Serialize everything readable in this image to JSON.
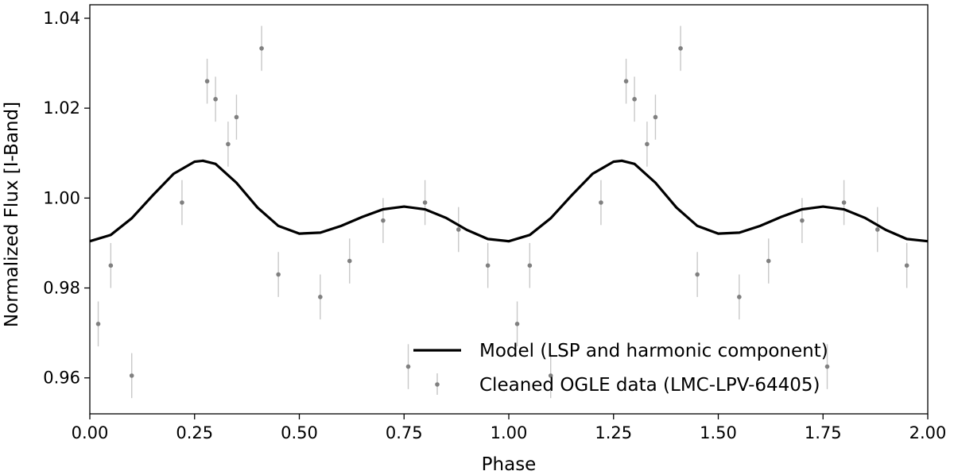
{
  "chart_data": {
    "type": "scatter",
    "xlabel": "Phase",
    "ylabel": "Normalized Flux [I-Band]",
    "xlim": [
      0.0,
      2.0
    ],
    "ylim": [
      0.952,
      1.043
    ],
    "x_ticks": [
      "0.00",
      "0.25",
      "0.50",
      "0.75",
      "1.00",
      "1.25",
      "1.50",
      "1.75",
      "2.00"
    ],
    "y_ticks": [
      "0.96",
      "0.98",
      "1.00",
      "1.02",
      "1.04"
    ],
    "grid": false,
    "legend_position": "lower-right",
    "series": [
      {
        "name": "Model (LSP and harmonic component)",
        "kind": "line",
        "color": "#000000",
        "x": [
          0.0,
          0.05,
          0.1,
          0.15,
          0.2,
          0.25,
          0.27,
          0.3,
          0.35,
          0.4,
          0.45,
          0.5,
          0.55,
          0.6,
          0.65,
          0.7,
          0.75,
          0.8,
          0.85,
          0.9,
          0.95,
          1.0,
          1.05,
          1.1,
          1.15,
          1.2,
          1.25,
          1.27,
          1.3,
          1.35,
          1.4,
          1.45,
          1.5,
          1.55,
          1.6,
          1.65,
          1.7,
          1.75,
          1.8,
          1.85,
          1.9,
          1.95,
          2.0
        ],
        "y": [
          0.9904,
          0.9918,
          0.9955,
          1.0006,
          1.0054,
          1.0081,
          1.0083,
          1.0076,
          1.0034,
          0.9979,
          0.9938,
          0.9921,
          0.9923,
          0.9938,
          0.9958,
          0.9975,
          0.9981,
          0.9975,
          0.9956,
          0.9929,
          0.9909,
          0.9904,
          0.9918,
          0.9955,
          1.0006,
          1.0054,
          1.0081,
          1.0083,
          1.0076,
          1.0034,
          0.9979,
          0.9938,
          0.9921,
          0.9923,
          0.9938,
          0.9958,
          0.9975,
          0.9981,
          0.9975,
          0.9956,
          0.9929,
          0.9909,
          0.9904
        ]
      },
      {
        "name": "Cleaned OGLE data (LMC-LPV-64405)",
        "kind": "scatter_with_errorbars",
        "color": "#808080",
        "errorbar_color": "#c8c8c8",
        "typical_error": 0.005,
        "x": [
          0.02,
          0.1,
          0.41,
          0.76,
          1.02,
          1.1,
          1.41,
          1.76,
          0.05,
          0.28,
          0.3,
          0.33,
          0.35,
          0.22,
          0.45,
          0.55,
          0.62,
          0.7,
          0.8,
          0.88,
          0.95,
          1.05,
          1.28,
          1.3,
          1.33,
          1.35,
          1.22,
          1.45,
          1.55,
          1.62,
          1.7,
          1.8,
          1.88,
          1.95
        ],
        "y": [
          0.972,
          0.9605,
          1.0333,
          0.9625,
          0.972,
          0.9605,
          1.0333,
          0.9625,
          0.985,
          1.026,
          1.022,
          1.012,
          1.018,
          0.999,
          0.983,
          0.978,
          0.986,
          0.995,
          0.999,
          0.993,
          0.985,
          0.985,
          1.026,
          1.022,
          1.012,
          1.018,
          0.999,
          0.983,
          0.978,
          0.986,
          0.995,
          0.999,
          0.993,
          0.985
        ]
      }
    ]
  }
}
